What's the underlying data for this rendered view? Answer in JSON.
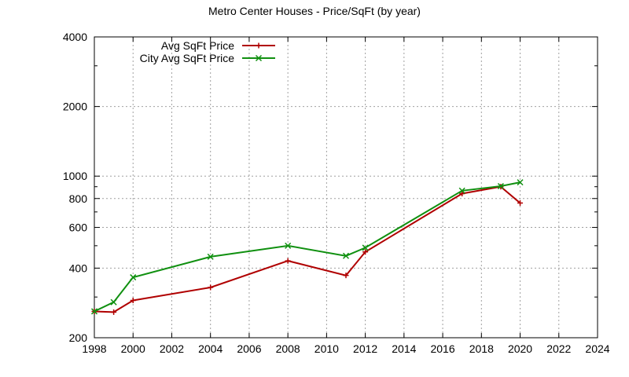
{
  "chart_data": {
    "type": "line",
    "title": "Metro Center Houses - Price/SqFt (by year)",
    "xlabel": "",
    "ylabel": "",
    "xlim": [
      1998,
      2024
    ],
    "ylim": [
      200,
      4000
    ],
    "yscale": "log",
    "grid": true,
    "legend_position": "top-left",
    "x_ticks": [
      "1998",
      "2000",
      "2002",
      "2004",
      "2006",
      "2008",
      "2010",
      "2012",
      "2014",
      "2016",
      "2018",
      "2020",
      "2022",
      "2024"
    ],
    "y_ticks": [
      "200",
      "400",
      "600",
      "800",
      "1000",
      "2000",
      "4000"
    ],
    "series": [
      {
        "name": "Avg SqFt Price",
        "color": "#b00000",
        "marker": "plus",
        "x": [
          1998,
          1999,
          2000,
          2004,
          2008,
          2011,
          2012,
          2017,
          2019,
          2020
        ],
        "y": [
          260,
          258,
          290,
          330,
          430,
          372,
          470,
          840,
          900,
          765
        ]
      },
      {
        "name": "City Avg SqFt Price",
        "color": "#109010",
        "marker": "x",
        "x": [
          1998,
          1999,
          2000,
          2004,
          2008,
          2011,
          2012,
          2017,
          2019,
          2020
        ],
        "y": [
          260,
          285,
          365,
          448,
          500,
          452,
          490,
          865,
          905,
          940
        ]
      }
    ]
  }
}
